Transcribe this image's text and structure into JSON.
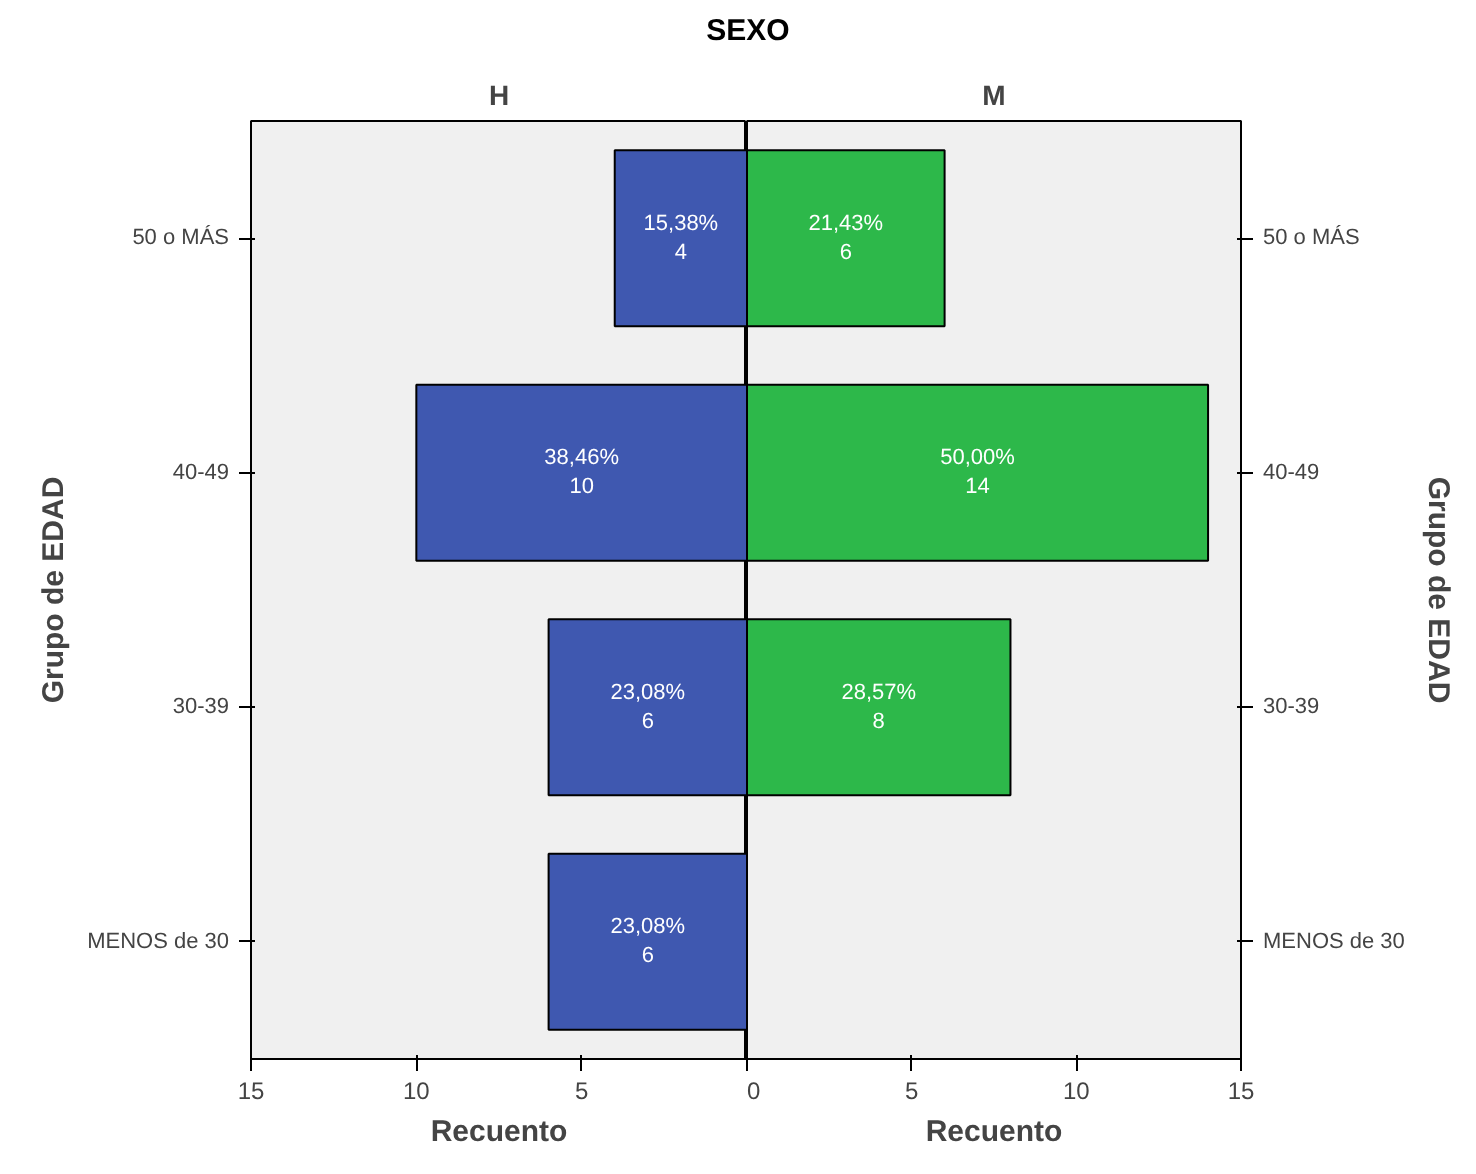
{
  "chart_data": [
    {
      "type": "bar",
      "orientation": "horizontal",
      "title": "H",
      "annotations": [
        "SEXO"
      ],
      "xlabel": "Recuento",
      "ylabel": "Grupo de EDAD",
      "categories": [
        "50 o MÁS",
        "40-49",
        "30-39",
        "MENOS de 30"
      ],
      "values": [
        4,
        10,
        6,
        6
      ],
      "color": "#3f58b0",
      "value_labels": [
        "15,38%\n4",
        "38,46%\n10",
        "23,08%\n6",
        "23,08%\n6"
      ],
      "xlim": [
        15,
        0
      ],
      "xticks": [
        15,
        10,
        5,
        {
          "value": 0,
          "label": null
        }
      ],
      "grid": false
    },
    {
      "type": "bar",
      "orientation": "horizontal",
      "title": "M",
      "xlabel": "Recuento",
      "ylabel": "Grupo de EDAD",
      "categories": [
        "50 o MÁS",
        "40-49",
        "30-39",
        "MENOS de 30"
      ],
      "values": [
        6,
        14,
        8,
        null
      ],
      "color": "#2db84a",
      "value_labels": [
        "21,43%\n6",
        "50,00%\n14",
        "28,57%\n8",
        null
      ],
      "xlim": [
        0,
        15
      ],
      "xticks": [
        0,
        5,
        10,
        15
      ],
      "grid": false
    }
  ]
}
